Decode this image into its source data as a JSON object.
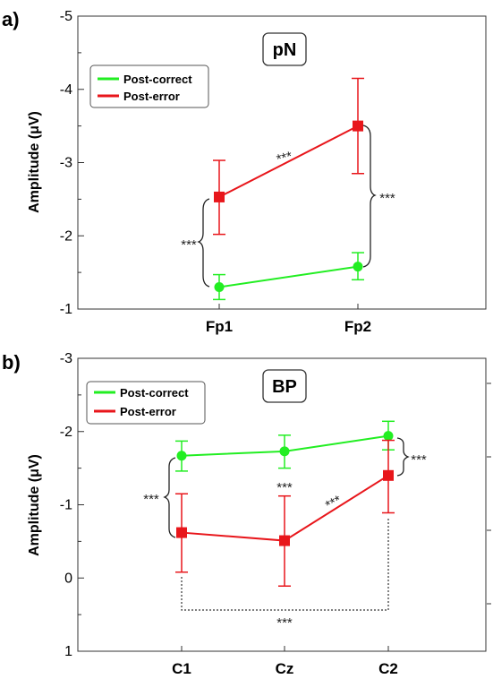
{
  "chart_data": [
    {
      "panel_label": "a)",
      "title": "pN",
      "type": "line",
      "ylabel": "Amplitude (μV)",
      "y_inverted": true,
      "ylim": [
        -5,
        -1
      ],
      "yticks": [
        "-5",
        "-4",
        "-3",
        "-2",
        "-1"
      ],
      "categories": [
        "Fp1",
        "Fp2"
      ],
      "legend_position": "top-left",
      "colors": {
        "post_correct": "#22ee22",
        "post_error": "#e8161b"
      },
      "series": [
        {
          "name": "Post-correct",
          "values": [
            -1.3,
            -1.58
          ],
          "err_low": [
            -1.13,
            -1.4
          ],
          "err_high": [
            -1.47,
            -1.77
          ]
        },
        {
          "name": "Post-error",
          "values": [
            -2.53,
            -3.5
          ],
          "err_low": [
            -2.02,
            -2.85
          ],
          "err_high": [
            -3.03,
            -4.15
          ]
        }
      ],
      "annotations": [
        "***",
        "***",
        "***"
      ]
    },
    {
      "panel_label": "b)",
      "title": "BP",
      "type": "line",
      "ylabel": "Amplitude (μV)",
      "y_inverted": true,
      "ylim": [
        -3,
        1
      ],
      "yticks": [
        "-3",
        "-2",
        "-1",
        "0",
        "1"
      ],
      "categories": [
        "C1",
        "Cz",
        "C2"
      ],
      "legend_position": "top-left",
      "colors": {
        "post_correct": "#22ee22",
        "post_error": "#e8161b"
      },
      "series": [
        {
          "name": "Post-correct",
          "values": [
            -1.67,
            -1.73,
            -1.94
          ],
          "err_low": [
            -1.46,
            -1.5,
            -1.75
          ],
          "err_high": [
            -1.87,
            -1.95,
            -2.14
          ]
        },
        {
          "name": "Post-error",
          "values": [
            -0.62,
            -0.51,
            -1.4
          ],
          "err_low": [
            -0.08,
            0.11,
            -0.89
          ],
          "err_high": [
            -1.15,
            -1.12,
            -1.88
          ]
        }
      ],
      "annotations": [
        "***",
        "***",
        "***",
        "***"
      ]
    }
  ]
}
